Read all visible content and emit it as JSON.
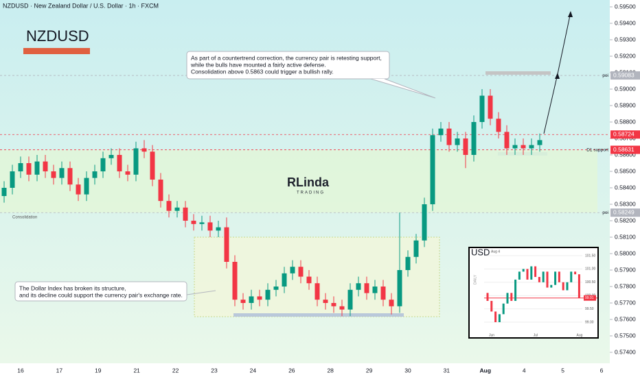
{
  "chart_data": {
    "type": "candlestick",
    "header": "NZDUSD · New Zealand Dollar / U.S. Dollar · 1h · FXCM",
    "title": "NZDUSD",
    "logo": "RLinda",
    "logo_sub": "TRADING",
    "annotations": [
      "As part of a countertrend correction, the currency pair is retesting support,",
      "while the bulls have mounted a fairly active defense.",
      "Consolidation above 0.5863 could trigger a bullish rally.",
      "The Dollar Index has broken its structure,",
      "and its decline could support the currency pair's exchange rate.",
      "Consolidation"
    ],
    "x_labels": [
      "16",
      "17",
      "19",
      "21",
      "22",
      "23",
      "24",
      "26",
      "28",
      "29",
      "30",
      "31",
      "Aug",
      "4",
      "5",
      "6"
    ],
    "ylim": [
      0.574,
      0.595
    ],
    "yticks": [
      {
        "value": 0.595,
        "label": "0.59500"
      },
      {
        "value": 0.594,
        "label": "0.59400"
      },
      {
        "value": 0.593,
        "label": "0.59300"
      },
      {
        "value": 0.592,
        "label": "0.59200"
      },
      {
        "value": 0.591,
        "label": "0.59100"
      },
      {
        "value": 0.59,
        "label": "0.59000"
      },
      {
        "value": 0.589,
        "label": "0.58900"
      },
      {
        "value": 0.588,
        "label": "0.58800"
      },
      {
        "value": 0.587,
        "label": "0.58700"
      },
      {
        "value": 0.586,
        "label": "0.58600"
      },
      {
        "value": 0.585,
        "label": "0.58500"
      },
      {
        "value": 0.584,
        "label": "0.58400"
      },
      {
        "value": 0.583,
        "label": "0.58300"
      },
      {
        "value": 0.582,
        "label": "0.58200"
      },
      {
        "value": 0.581,
        "label": "0.58100"
      },
      {
        "value": 0.58,
        "label": "0.58000"
      },
      {
        "value": 0.579,
        "label": "0.57900"
      },
      {
        "value": 0.578,
        "label": "0.57800"
      },
      {
        "value": 0.577,
        "label": "0.57700"
      },
      {
        "value": 0.576,
        "label": "0.57600"
      },
      {
        "value": 0.575,
        "label": "0.57500"
      },
      {
        "value": 0.574,
        "label": "0.57400"
      }
    ],
    "levels": [
      {
        "value": 0.59083,
        "label": "poi",
        "color": "#b2b5be"
      },
      {
        "value": 0.58724,
        "color": "#f23645"
      },
      {
        "value": 0.58631,
        "label": "D1 support",
        "color": "#f23645"
      },
      {
        "value": 0.58249,
        "label": "poi",
        "color": "#b2b5be"
      }
    ],
    "up_color": "#089981",
    "down_color": "#f23645",
    "open": [
      0.5835,
      0.584,
      0.585,
      0.5855,
      0.5848,
      0.5856,
      0.585,
      0.5846,
      0.5852,
      0.5842,
      0.5836,
      0.5846,
      0.585,
      0.5858,
      0.586,
      0.585,
      0.5848,
      0.5864,
      0.5862,
      0.5845,
      0.5832,
      0.5826,
      0.5828,
      0.582,
      0.5818,
      0.5819,
      0.5814,
      0.5816,
      0.5795,
      0.5772,
      0.577,
      0.5774,
      0.5772,
      0.5778,
      0.578,
      0.5788,
      0.5792,
      0.5786,
      0.5782,
      0.5772,
      0.577,
      0.5768,
      0.5766,
      0.5778,
      0.5782,
      0.5776,
      0.578,
      0.5772,
      0.5768,
      0.579,
      0.5798,
      0.5808,
      0.583,
      0.5872,
      0.5876,
      0.5866,
      0.587,
      0.586,
      0.588,
      0.5896,
      0.5882,
      0.5874,
      0.5864,
      0.5866,
      0.5864,
      0.5866
    ],
    "high": [
      0.5844,
      0.5854,
      0.5859,
      0.5859,
      0.586,
      0.586,
      0.5854,
      0.5856,
      0.5856,
      0.5846,
      0.585,
      0.5854,
      0.5862,
      0.5864,
      0.5864,
      0.5854,
      0.5868,
      0.5869,
      0.5866,
      0.5849,
      0.5836,
      0.5832,
      0.5832,
      0.5824,
      0.5823,
      0.5823,
      0.582,
      0.5822,
      0.5799,
      0.5776,
      0.5778,
      0.5778,
      0.5782,
      0.5784,
      0.5792,
      0.5796,
      0.5796,
      0.579,
      0.5786,
      0.5776,
      0.5774,
      0.5772,
      0.5782,
      0.5786,
      0.5786,
      0.5784,
      0.5784,
      0.5776,
      0.5825,
      0.5802,
      0.5812,
      0.5834,
      0.5876,
      0.588,
      0.588,
      0.5874,
      0.5874,
      0.5884,
      0.59,
      0.59,
      0.5886,
      0.5878,
      0.587,
      0.587,
      0.587,
      0.5873
    ],
    "low": [
      0.5831,
      0.5836,
      0.5846,
      0.5844,
      0.5844,
      0.5846,
      0.5842,
      0.5842,
      0.5838,
      0.5832,
      0.5832,
      0.5842,
      0.5846,
      0.5854,
      0.5846,
      0.5844,
      0.5844,
      0.5858,
      0.5841,
      0.5828,
      0.5822,
      0.5822,
      0.5816,
      0.5814,
      0.5814,
      0.581,
      0.581,
      0.5791,
      0.5768,
      0.5766,
      0.5766,
      0.5768,
      0.5768,
      0.5774,
      0.5776,
      0.5784,
      0.5782,
      0.5778,
      0.5768,
      0.5766,
      0.5764,
      0.5762,
      0.5762,
      0.5774,
      0.5772,
      0.5772,
      0.5768,
      0.5763,
      0.5764,
      0.5786,
      0.5794,
      0.5804,
      0.5826,
      0.5868,
      0.5862,
      0.5862,
      0.5852,
      0.5856,
      0.5876,
      0.5878,
      0.587,
      0.586,
      0.586,
      0.586,
      0.586,
      0.5862
    ],
    "close": [
      0.584,
      0.585,
      0.5855,
      0.5848,
      0.5856,
      0.585,
      0.5846,
      0.5852,
      0.5842,
      0.5836,
      0.5846,
      0.585,
      0.5858,
      0.586,
      0.585,
      0.5848,
      0.5864,
      0.5862,
      0.5845,
      0.5832,
      0.5826,
      0.5828,
      0.582,
      0.5818,
      0.5819,
      0.5814,
      0.5816,
      0.5795,
      0.5772,
      0.577,
      0.5774,
      0.5772,
      0.5778,
      0.578,
      0.5788,
      0.5792,
      0.5786,
      0.5782,
      0.5772,
      0.577,
      0.5768,
      0.5766,
      0.5778,
      0.5782,
      0.5776,
      0.578,
      0.5772,
      0.5768,
      0.579,
      0.5798,
      0.5808,
      0.583,
      0.5872,
      0.5876,
      0.5866,
      0.587,
      0.586,
      0.588,
      0.5896,
      0.5882,
      0.5874,
      0.5864,
      0.5866,
      0.5864,
      0.5866,
      0.5869
    ],
    "inset": {
      "title": "USD",
      "subtitle": "Aug 4",
      "side_label": "DAILY",
      "x_labels": [
        "Jun",
        "Jul",
        "Aug"
      ],
      "ylim": [
        99.0,
        101.5
      ],
      "yticks": [
        {
          "value": 101.5,
          "label": "101.50"
        },
        {
          "value": 101.0,
          "label": "101.00"
        },
        {
          "value": 100.5,
          "label": "100.50"
        },
        {
          "value": 100.0,
          "label": "100.00"
        },
        {
          "value": 99.5,
          "label": "99.50"
        },
        {
          "value": 99.0,
          "label": "99.00"
        }
      ],
      "last": 99.91,
      "open": [
        100.1,
        99.8,
        99.4,
        99.0,
        99.3,
        99.7,
        100.1,
        99.8,
        100.6,
        100.9,
        101.0,
        100.6,
        101.1,
        100.7,
        100.5,
        100.9,
        100.3,
        100.4,
        100.9,
        100.5,
        100.2,
        100.5,
        100.9,
        100.8
      ],
      "close": [
        99.8,
        99.4,
        99.0,
        99.3,
        99.7,
        100.1,
        99.8,
        100.6,
        100.9,
        101.0,
        100.6,
        101.1,
        100.7,
        100.5,
        100.9,
        100.3,
        100.4,
        100.9,
        100.5,
        100.2,
        100.5,
        100.9,
        100.8,
        99.91
      ]
    }
  }
}
